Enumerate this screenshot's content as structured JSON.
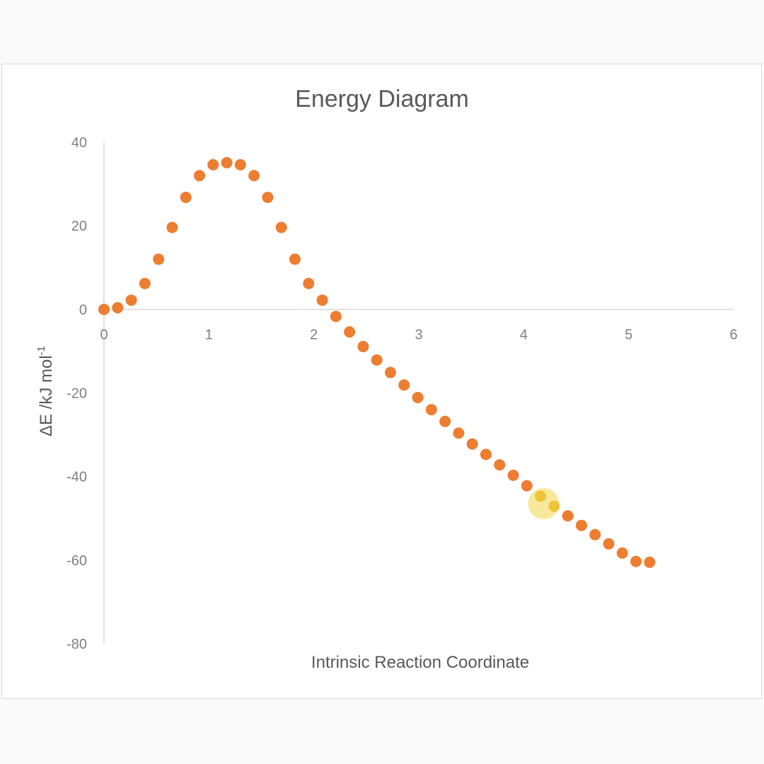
{
  "chart_data": {
    "type": "scatter",
    "title": "Energy Diagram",
    "xlabel": "Intrinsic Reaction Coordinate",
    "ylabel_main": "ΔE /kJ mol",
    "ylabel_sup": "-1",
    "xlim": [
      0,
      6
    ],
    "ylim": [
      -80,
      40
    ],
    "x_ticks": [
      0,
      1,
      2,
      3,
      4,
      5,
      6
    ],
    "y_ticks": [
      40,
      20,
      0,
      -20,
      -40,
      -60,
      -80
    ],
    "grid": false,
    "marker_color": "#ed7d31",
    "highlight_color": "#f2d64b",
    "highlight_point": {
      "x": 4.19,
      "y": -46.5
    },
    "series": [
      {
        "x": [
          0.0,
          0.13,
          0.26,
          0.39,
          0.52,
          0.65,
          0.78,
          0.91,
          1.04,
          1.17,
          1.3,
          1.43,
          1.56,
          1.69,
          1.82,
          1.95,
          2.08,
          2.21,
          2.34,
          2.47,
          2.6,
          2.73,
          2.86,
          2.99,
          3.12,
          3.25,
          3.38,
          3.51,
          3.64,
          3.77,
          3.9,
          4.03,
          4.16,
          4.29,
          4.42,
          4.55,
          4.68,
          4.81,
          4.94,
          5.07,
          5.2
        ],
        "y": [
          0.0,
          0.4,
          2.2,
          6.2,
          12.0,
          19.6,
          26.8,
          32.0,
          34.6,
          35.1,
          34.6,
          32.0,
          26.8,
          19.6,
          12.0,
          6.2,
          2.2,
          -1.7,
          -5.4,
          -8.9,
          -12.1,
          -15.1,
          -18.1,
          -21.1,
          -24.0,
          -26.8,
          -29.6,
          -32.2,
          -34.7,
          -37.2,
          -39.7,
          -42.2,
          -44.7,
          -47.1,
          -49.4,
          -51.7,
          -53.9,
          -56.1,
          -58.3,
          -60.3,
          -60.5
        ]
      }
    ]
  }
}
